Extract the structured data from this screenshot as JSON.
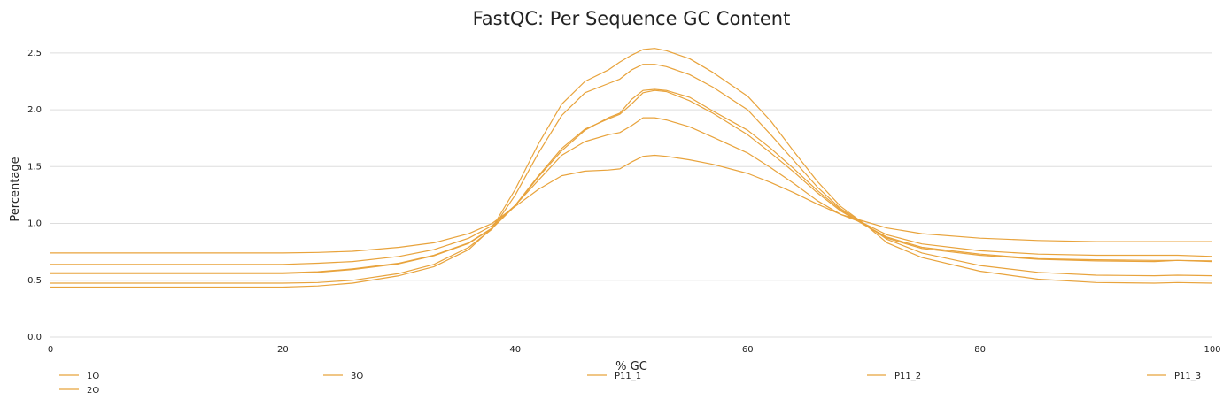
{
  "chart_data": {
    "type": "line",
    "title": "FastQC: Per Sequence GC Content",
    "xlabel": "% GC",
    "ylabel": "Percentage",
    "xlim": [
      0,
      100
    ],
    "ylim": [
      0,
      2.6
    ],
    "xticks": [
      "0",
      "20",
      "40",
      "60",
      "80",
      "100"
    ],
    "yticks": [
      "0.0",
      "0.5",
      "1.0",
      "1.5",
      "2.0",
      "2.5"
    ],
    "grid": "horizontal",
    "legend_position": "bottom",
    "line_color": "#e8a33c",
    "x": [
      0,
      5,
      10,
      15,
      20,
      23,
      26,
      30,
      33,
      36,
      38,
      40,
      42,
      44,
      46,
      48,
      49,
      50,
      51,
      52,
      53,
      55,
      57,
      60,
      62,
      64,
      66,
      68,
      70,
      72,
      75,
      80,
      85,
      90,
      95,
      97,
      100
    ],
    "series": [
      {
        "name": "1O",
        "values": [
          0.74,
          0.74,
          0.74,
          0.74,
          0.74,
          0.745,
          0.755,
          0.79,
          0.83,
          0.91,
          1.0,
          1.15,
          1.3,
          1.42,
          1.46,
          1.47,
          1.48,
          1.54,
          1.59,
          1.6,
          1.59,
          1.56,
          1.52,
          1.44,
          1.36,
          1.27,
          1.17,
          1.08,
          1.02,
          0.96,
          0.91,
          0.87,
          0.85,
          0.84,
          0.84,
          0.84,
          0.84
        ]
      },
      {
        "name": "2O",
        "values": [
          0.64,
          0.64,
          0.64,
          0.64,
          0.64,
          0.65,
          0.665,
          0.71,
          0.77,
          0.87,
          0.98,
          1.16,
          1.38,
          1.6,
          1.72,
          1.78,
          1.8,
          1.86,
          1.93,
          1.93,
          1.91,
          1.85,
          1.76,
          1.62,
          1.49,
          1.35,
          1.2,
          1.08,
          1.0,
          0.9,
          0.82,
          0.76,
          0.73,
          0.72,
          0.72,
          0.72,
          0.71
        ]
      },
      {
        "name": "3O",
        "values": [
          0.565,
          0.565,
          0.565,
          0.565,
          0.565,
          0.575,
          0.6,
          0.65,
          0.72,
          0.83,
          0.96,
          1.16,
          1.42,
          1.66,
          1.83,
          1.92,
          1.96,
          2.05,
          2.15,
          2.17,
          2.16,
          2.08,
          1.97,
          1.78,
          1.62,
          1.45,
          1.27,
          1.11,
          0.99,
          0.88,
          0.79,
          0.73,
          0.69,
          0.68,
          0.675,
          0.675,
          0.67
        ]
      },
      {
        "name": "P11_1",
        "values": [
          0.56,
          0.56,
          0.56,
          0.56,
          0.56,
          0.57,
          0.595,
          0.645,
          0.715,
          0.825,
          0.955,
          1.155,
          1.41,
          1.64,
          1.82,
          1.93,
          1.97,
          2.09,
          2.17,
          2.18,
          2.17,
          2.11,
          1.99,
          1.82,
          1.66,
          1.48,
          1.29,
          1.12,
          0.99,
          0.87,
          0.78,
          0.72,
          0.685,
          0.67,
          0.665,
          0.675,
          0.665
        ]
      },
      {
        "name": "P11_2",
        "values": [
          0.475,
          0.475,
          0.475,
          0.475,
          0.475,
          0.48,
          0.5,
          0.56,
          0.64,
          0.79,
          0.95,
          1.25,
          1.62,
          1.95,
          2.15,
          2.23,
          2.27,
          2.35,
          2.4,
          2.4,
          2.38,
          2.31,
          2.2,
          2.0,
          1.78,
          1.55,
          1.32,
          1.13,
          1.0,
          0.86,
          0.74,
          0.63,
          0.57,
          0.545,
          0.54,
          0.545,
          0.54
        ]
      },
      {
        "name": "P11_3",
        "values": [
          0.44,
          0.44,
          0.44,
          0.44,
          0.44,
          0.45,
          0.475,
          0.54,
          0.62,
          0.77,
          0.96,
          1.3,
          1.7,
          2.05,
          2.25,
          2.35,
          2.42,
          2.48,
          2.53,
          2.54,
          2.52,
          2.45,
          2.33,
          2.12,
          1.9,
          1.63,
          1.37,
          1.15,
          1.0,
          0.83,
          0.7,
          0.58,
          0.51,
          0.48,
          0.475,
          0.48,
          0.475
        ]
      }
    ]
  }
}
